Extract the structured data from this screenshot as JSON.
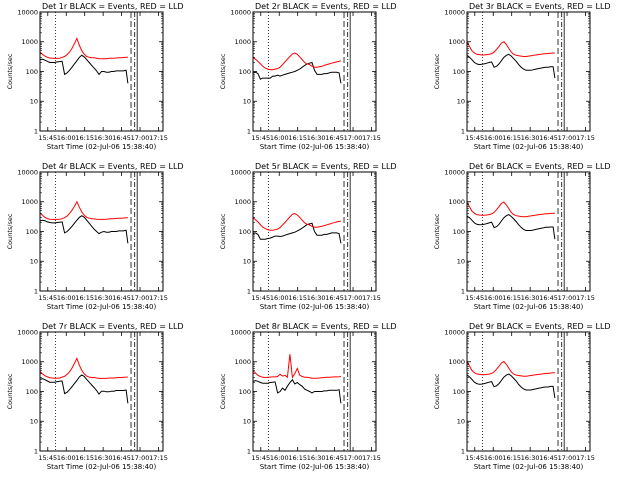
{
  "figure": {
    "panel_titles": [
      "Det 1r BLACK = Events, RED = LLD",
      "Det 2r BLACK = Events, RED = LLD",
      "Det 3r BLACK = Events, RED = LLD",
      "Det 4r BLACK = Events, RED = LLD",
      "Det 5r BLACK = Events, RED = LLD",
      "Det 6r BLACK = Events, RED = LLD",
      "Det 7r BLACK = Events, RED = LLD",
      "Det 8r BLACK = Events, RED = LLD",
      "Det 9r BLACK = Events, RED = LLD"
    ],
    "xlabel": "Start Time (02-Jul-06 15:38:40)",
    "ylabel": "Counts/sec",
    "xtick_labels": [
      "15:45",
      "16:00",
      "16:15",
      "16:30",
      "16:45",
      "17:00",
      "17:15"
    ],
    "ytick_labels": [
      "1",
      "10",
      "100",
      "1000",
      "10000"
    ],
    "colors": {
      "events": "#000000",
      "lld": "#ff0000",
      "axes": "#000000"
    }
  },
  "chart_data": {
    "type": "line",
    "layout": "3x3 grid",
    "x_unit": "minutes after 15:38:40",
    "xlim": [
      0,
      100
    ],
    "xticks": [
      6.33,
      21.33,
      36.33,
      51.33,
      66.33,
      81.33,
      96.33
    ],
    "yscale": "log",
    "ylim": [
      1,
      10000
    ],
    "yticks": [
      1,
      10,
      100,
      1000,
      10000
    ],
    "x": [
      0,
      2,
      4,
      6,
      8,
      10,
      12,
      14,
      16,
      18,
      20,
      22,
      24,
      26,
      28,
      30,
      32,
      34,
      36,
      38,
      40,
      42,
      44,
      46,
      48,
      50,
      52,
      54,
      56,
      58,
      60,
      62,
      64,
      66,
      68,
      70,
      71.5
    ],
    "vertical_lines": [
      {
        "x": 12.5,
        "style": "dotted"
      },
      {
        "x": 74,
        "style": "long-dash"
      },
      {
        "x": 77,
        "style": "dash-dot"
      },
      {
        "x": 79,
        "style": "solid"
      }
    ],
    "panels": [
      {
        "name": "Det 1r",
        "series": [
          {
            "name": "BLACK = Events",
            "values": [
              250,
              260,
              240,
              220,
              200,
              200,
              200,
              210,
              215,
              220,
              80,
              90,
              110,
              140,
              180,
              230,
              300,
              350,
              310,
              250,
              200,
              160,
              130,
              105,
              80,
              100,
              100,
              95,
              95,
              100,
              100,
              105,
              105,
              105,
              105,
              110,
              40
            ]
          },
          {
            "name": "RED = LLD",
            "values": [
              450,
              380,
              330,
              300,
              285,
              280,
              275,
              275,
              280,
              300,
              320,
              370,
              450,
              600,
              850,
              1300,
              750,
              500,
              380,
              320,
              300,
              290,
              290,
              280,
              270,
              270,
              270,
              270,
              280,
              280,
              280,
              285,
              290,
              290,
              295,
              300,
              300
            ]
          }
        ]
      },
      {
        "name": "Det 2r",
        "series": [
          {
            "name": "BLACK = Events",
            "values": [
              90,
              95,
              85,
              55,
              60,
              60,
              60,
              60,
              70,
              70,
              75,
              70,
              75,
              80,
              85,
              90,
              95,
              100,
              110,
              120,
              140,
              160,
              180,
              190,
              200,
              110,
              80,
              80,
              80,
              85,
              85,
              90,
              95,
              95,
              95,
              90,
              40
            ]
          },
          {
            "name": "RED = LLD",
            "values": [
              300,
              260,
              220,
              180,
              150,
              130,
              120,
              115,
              115,
              120,
              125,
              140,
              170,
              210,
              260,
              320,
              390,
              420,
              380,
              310,
              250,
              200,
              180,
              170,
              150,
              140,
              140,
              145,
              150,
              160,
              170,
              180,
              190,
              200,
              210,
              220,
              230
            ]
          }
        ]
      },
      {
        "name": "Det 3r",
        "series": [
          {
            "name": "BLACK = Events",
            "values": [
              350,
              300,
              250,
              200,
              180,
              170,
              175,
              180,
              190,
              200,
              210,
              140,
              150,
              180,
              230,
              300,
              350,
              380,
              330,
              270,
              220,
              170,
              140,
              120,
              110,
              110,
              110,
              115,
              120,
              125,
              130,
              135,
              140,
              140,
              145,
              145,
              60
            ]
          },
          {
            "name": "RED = LLD",
            "values": [
              1000,
              700,
              500,
              420,
              380,
              370,
              360,
              360,
              370,
              380,
              400,
              450,
              550,
              700,
              900,
              1000,
              800,
              600,
              450,
              380,
              350,
              340,
              330,
              320,
              320,
              330,
              340,
              350,
              360,
              370,
              380,
              390,
              400,
              400,
              410,
              420,
              420
            ]
          }
        ]
      },
      {
        "name": "Det 4r",
        "series": [
          {
            "name": "BLACK = Events",
            "values": [
              230,
              240,
              230,
              210,
              200,
              195,
              195,
              200,
              205,
              210,
              90,
              100,
              120,
              150,
              190,
              240,
              300,
              340,
              300,
              240,
              190,
              150,
              120,
              100,
              85,
              95,
              100,
              95,
              95,
              100,
              100,
              100,
              105,
              105,
              105,
              110,
              40
            ]
          },
          {
            "name": "RED = LLD",
            "values": [
              420,
              350,
              300,
              270,
              260,
              255,
              255,
              255,
              260,
              270,
              290,
              330,
              400,
              520,
              700,
              1000,
              650,
              450,
              350,
              300,
              280,
              270,
              265,
              260,
              255,
              255,
              255,
              260,
              265,
              270,
              270,
              275,
              280,
              280,
              285,
              290,
              290
            ]
          }
        ]
      },
      {
        "name": "Det 5r",
        "series": [
          {
            "name": "BLACK = Events",
            "values": [
              85,
              90,
              80,
              55,
              55,
              55,
              58,
              60,
              65,
              70,
              70,
              68,
              70,
              75,
              80,
              85,
              90,
              95,
              105,
              115,
              130,
              150,
              170,
              180,
              190,
              100,
              75,
              75,
              75,
              80,
              80,
              85,
              90,
              90,
              90,
              85,
              40
            ]
          },
          {
            "name": "RED = LLD",
            "values": [
              290,
              250,
              210,
              170,
              140,
              125,
              115,
              110,
              110,
              115,
              120,
              135,
              165,
              200,
              250,
              310,
              380,
              400,
              360,
              300,
              240,
              195,
              175,
              165,
              148,
              140,
              140,
              145,
              150,
              158,
              168,
              178,
              188,
              198,
              208,
              218,
              225
            ]
          }
        ]
      },
      {
        "name": "Det 6r",
        "series": [
          {
            "name": "BLACK = Events",
            "values": [
              330,
              290,
              240,
              195,
              175,
              168,
              170,
              175,
              185,
              195,
              205,
              135,
              145,
              175,
              225,
              290,
              340,
              370,
              320,
              265,
              215,
              168,
              138,
              118,
              108,
              108,
              108,
              112,
              118,
              122,
              128,
              132,
              138,
              138,
              142,
              142,
              55
            ]
          },
          {
            "name": "RED = LLD",
            "values": [
              950,
              680,
              490,
              410,
              370,
              360,
              350,
              350,
              360,
              370,
              390,
              440,
              540,
              680,
              880,
              980,
              780,
              590,
              440,
              370,
              340,
              330,
              320,
              315,
              315,
              325,
              335,
              345,
              355,
              365,
              375,
              385,
              395,
              395,
              405,
              410,
              410
            ]
          }
        ]
      },
      {
        "name": "Det 7r",
        "series": [
          {
            "name": "BLACK = Events",
            "values": [
              260,
              270,
              250,
              225,
              205,
              205,
              205,
              215,
              220,
              225,
              85,
              95,
              115,
              145,
              185,
              235,
              310,
              360,
              320,
              255,
              205,
              165,
              135,
              108,
              82,
              102,
              102,
              98,
              98,
              102,
              102,
              108,
              108,
              108,
              108,
              112,
              40
            ]
          },
          {
            "name": "RED = LLD",
            "values": [
              470,
              390,
              340,
              310,
              290,
              285,
              280,
              280,
              285,
              305,
              325,
              375,
              460,
              610,
              870,
              1300,
              760,
              510,
              390,
              330,
              305,
              295,
              295,
              285,
              275,
              275,
              275,
              275,
              285,
              285,
              285,
              290,
              295,
              295,
              300,
              305,
              305
            ]
          }
        ]
      },
      {
        "name": "Det 8r",
        "series": [
          {
            "name": "BLACK = Events",
            "values": [
              220,
              230,
              220,
              200,
              190,
              190,
              190,
              200,
              205,
              210,
              90,
              100,
              130,
              110,
              150,
              200,
              250,
              180,
              200,
              170,
              150,
              120,
              110,
              100,
              90,
              100,
              100,
              100,
              100,
              105,
              105,
              110,
              110,
              110,
              110,
              115,
              40
            ]
          },
          {
            "name": "RED = LLD",
            "values": [
              500,
              420,
              350,
              320,
              300,
              295,
              300,
              305,
              310,
              310,
              320,
              380,
              330,
              350,
              300,
              1800,
              300,
              400,
              600,
              350,
              320,
              300,
              300,
              290,
              280,
              280,
              280,
              285,
              290,
              295,
              300,
              300,
              305,
              310,
              310,
              315,
              320
            ]
          }
        ]
      },
      {
        "name": "Det 9r",
        "series": [
          {
            "name": "BLACK = Events",
            "values": [
              360,
              310,
              255,
              205,
              185,
              175,
              178,
              185,
              195,
              205,
              215,
              145,
              155,
              185,
              235,
              305,
              355,
              385,
              335,
              275,
              225,
              172,
              142,
              122,
              112,
              112,
              112,
              118,
              122,
              128,
              132,
              138,
              142,
              142,
              148,
              148,
              60
            ]
          },
          {
            "name": "RED = LLD",
            "values": [
              1050,
              720,
              510,
              430,
              390,
              375,
              365,
              365,
              375,
              385,
              405,
              455,
              560,
              710,
              910,
              1020,
              810,
              610,
              455,
              385,
              355,
              345,
              335,
              325,
              325,
              335,
              345,
              355,
              365,
              375,
              385,
              395,
              405,
              405,
              415,
              425,
              425
            ]
          }
        ]
      }
    ]
  }
}
